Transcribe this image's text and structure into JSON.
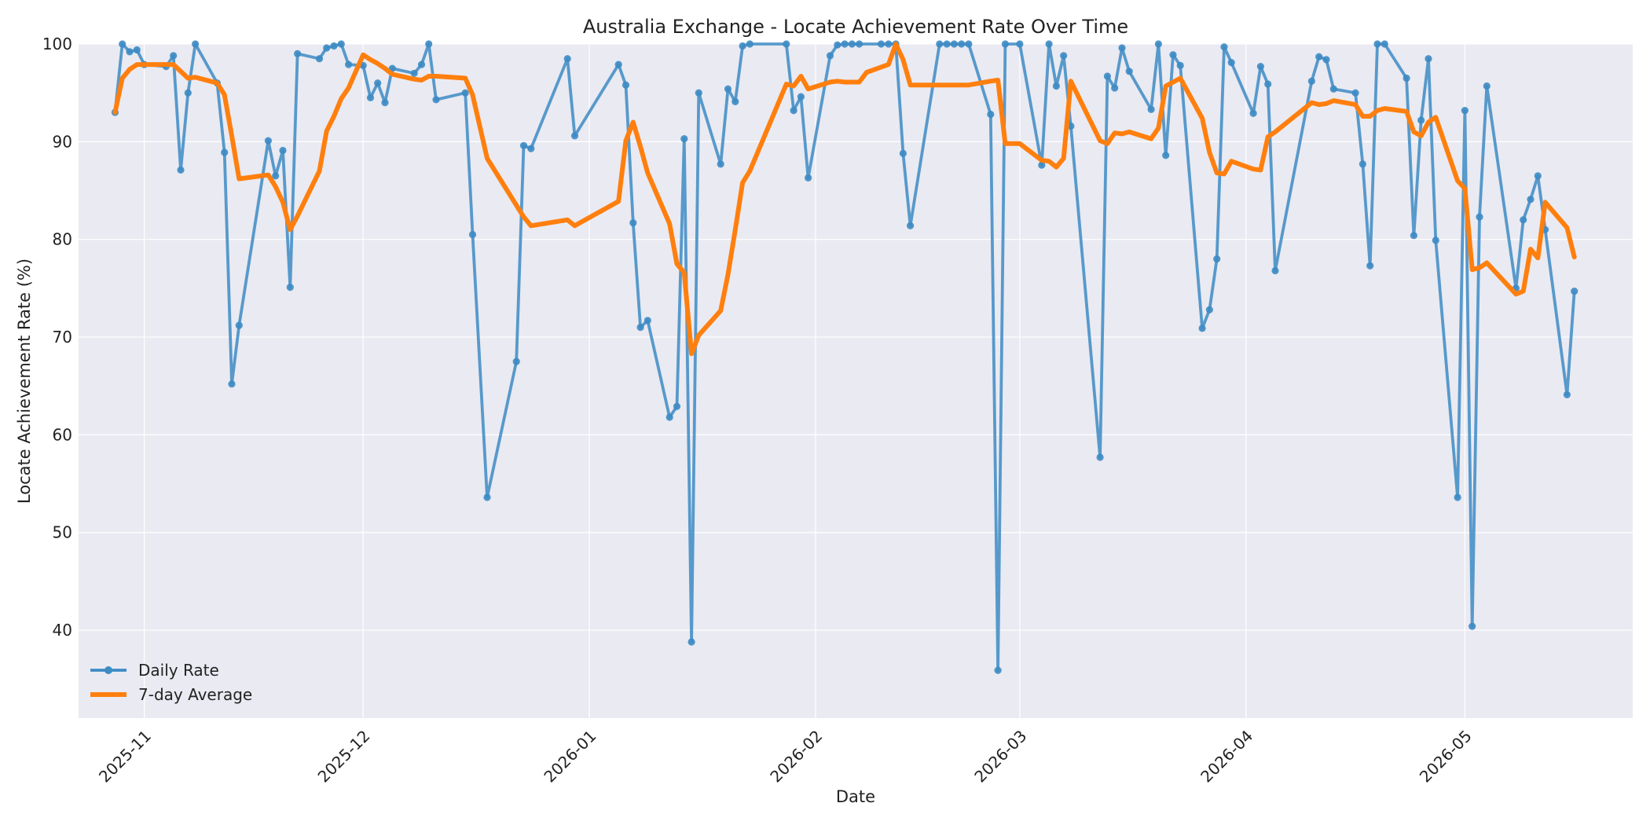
{
  "chart_data": {
    "type": "line",
    "title": "Australia Exchange - Locate Achievement Rate Over Time",
    "xlabel": "Date",
    "ylabel": "Locate Achievement Rate (%)",
    "xlim": [
      "2025-10-23",
      "2026-05-24"
    ],
    "ylim": [
      31,
      100
    ],
    "grid": true,
    "legend_position": "lower-left",
    "x_ticks": [
      "2025-11",
      "2025-12",
      "2026-01",
      "2026-02",
      "2026-03",
      "2026-04",
      "2026-05"
    ],
    "y_ticks": [
      40,
      50,
      60,
      70,
      80,
      90,
      100
    ],
    "colors": {
      "plot_background": "#eaeaf2",
      "grid": "#ffffff",
      "daily_rate": "#3d8bc4",
      "seven_day_average": "#ff7f0e"
    },
    "series": [
      {
        "name": "Daily Rate",
        "marker": "circle",
        "points": [
          [
            "2025-10-28",
            93.0
          ],
          [
            "2025-10-29",
            100.0
          ],
          [
            "2025-10-30",
            99.2
          ],
          [
            "2025-10-31",
            99.4
          ],
          [
            "2025-11-01",
            97.9
          ],
          [
            "2025-11-04",
            97.7
          ],
          [
            "2025-11-05",
            98.8
          ],
          [
            "2025-11-06",
            87.1
          ],
          [
            "2025-11-07",
            95.0
          ],
          [
            "2025-11-08",
            100.0
          ],
          [
            "2025-11-11",
            96.0
          ],
          [
            "2025-11-12",
            88.9
          ],
          [
            "2025-11-13",
            65.2
          ],
          [
            "2025-11-14",
            71.2
          ],
          [
            "2025-11-18",
            90.1
          ],
          [
            "2025-11-19",
            86.5
          ],
          [
            "2025-11-20",
            89.1
          ],
          [
            "2025-11-21",
            75.1
          ],
          [
            "2025-11-22",
            99.0
          ],
          [
            "2025-11-25",
            98.5
          ],
          [
            "2025-11-26",
            99.6
          ],
          [
            "2025-11-27",
            99.8
          ],
          [
            "2025-11-28",
            100.0
          ],
          [
            "2025-11-29",
            97.9
          ],
          [
            "2025-12-01",
            97.8
          ],
          [
            "2025-12-02",
            94.5
          ],
          [
            "2025-12-03",
            96.0
          ],
          [
            "2025-12-04",
            94.0
          ],
          [
            "2025-12-05",
            97.5
          ],
          [
            "2025-12-08",
            97.0
          ],
          [
            "2025-12-09",
            97.9
          ],
          [
            "2025-12-10",
            100.0
          ],
          [
            "2025-12-11",
            94.3
          ],
          [
            "2025-12-15",
            95.0
          ],
          [
            "2025-12-16",
            80.5
          ],
          [
            "2025-12-18",
            53.6
          ],
          [
            "2025-12-22",
            67.5
          ],
          [
            "2025-12-23",
            89.6
          ],
          [
            "2025-12-24",
            89.3
          ],
          [
            "2025-12-29",
            98.5
          ],
          [
            "2025-12-30",
            90.6
          ],
          [
            "2026-01-05",
            97.9
          ],
          [
            "2026-01-06",
            95.8
          ],
          [
            "2026-01-07",
            81.7
          ],
          [
            "2026-01-08",
            71.0
          ],
          [
            "2026-01-09",
            71.7
          ],
          [
            "2026-01-12",
            61.8
          ],
          [
            "2026-01-13",
            62.9
          ],
          [
            "2026-01-14",
            90.3
          ],
          [
            "2026-01-15",
            38.8
          ],
          [
            "2026-01-16",
            95.0
          ],
          [
            "2026-01-19",
            87.7
          ],
          [
            "2026-01-20",
            95.4
          ],
          [
            "2026-01-21",
            94.1
          ],
          [
            "2026-01-22",
            99.8
          ],
          [
            "2026-01-23",
            100.0
          ],
          [
            "2026-01-28",
            100.0
          ],
          [
            "2026-01-29",
            93.2
          ],
          [
            "2026-01-30",
            94.6
          ],
          [
            "2026-01-31",
            86.3
          ],
          [
            "2026-02-03",
            98.8
          ],
          [
            "2026-02-04",
            99.9
          ],
          [
            "2026-02-05",
            100.0
          ],
          [
            "2026-02-06",
            100.0
          ],
          [
            "2026-02-07",
            100.0
          ],
          [
            "2026-02-10",
            100.0
          ],
          [
            "2026-02-11",
            100.0
          ],
          [
            "2026-02-12",
            100.0
          ],
          [
            "2026-02-13",
            88.8
          ],
          [
            "2026-02-14",
            81.4
          ],
          [
            "2026-02-18",
            100.0
          ],
          [
            "2026-02-19",
            100.0
          ],
          [
            "2026-02-20",
            100.0
          ],
          [
            "2026-02-21",
            100.0
          ],
          [
            "2026-02-22",
            100.0
          ],
          [
            "2026-02-25",
            92.8
          ],
          [
            "2026-02-26",
            35.9
          ],
          [
            "2026-02-27",
            100.0
          ],
          [
            "2026-03-01",
            100.0
          ],
          [
            "2026-03-04",
            87.6
          ],
          [
            "2026-03-05",
            100.0
          ],
          [
            "2026-03-06",
            95.7
          ],
          [
            "2026-03-07",
            98.8
          ],
          [
            "2026-03-08",
            91.6
          ],
          [
            "2026-03-12",
            57.7
          ],
          [
            "2026-03-13",
            96.7
          ],
          [
            "2026-03-14",
            95.5
          ],
          [
            "2026-03-15",
            99.6
          ],
          [
            "2026-03-16",
            97.2
          ],
          [
            "2026-03-19",
            93.3
          ],
          [
            "2026-03-20",
            100.0
          ],
          [
            "2026-03-21",
            88.6
          ],
          [
            "2026-03-22",
            98.9
          ],
          [
            "2026-03-23",
            97.8
          ],
          [
            "2026-03-26",
            70.9
          ],
          [
            "2026-03-27",
            72.8
          ],
          [
            "2026-03-28",
            78.0
          ],
          [
            "2026-03-29",
            99.7
          ],
          [
            "2026-03-30",
            98.1
          ],
          [
            "2026-04-02",
            92.9
          ],
          [
            "2026-04-03",
            97.7
          ],
          [
            "2026-04-04",
            95.9
          ],
          [
            "2026-04-05",
            76.8
          ],
          [
            "2026-04-10",
            96.2
          ],
          [
            "2026-04-11",
            98.7
          ],
          [
            "2026-04-12",
            98.4
          ],
          [
            "2026-04-13",
            95.4
          ],
          [
            "2026-04-16",
            95.0
          ],
          [
            "2026-04-17",
            87.7
          ],
          [
            "2026-04-18",
            77.3
          ],
          [
            "2026-04-19",
            100.0
          ],
          [
            "2026-04-20",
            100.0
          ],
          [
            "2026-04-23",
            96.5
          ],
          [
            "2026-04-24",
            80.4
          ],
          [
            "2026-04-25",
            92.2
          ],
          [
            "2026-04-26",
            98.5
          ],
          [
            "2026-04-27",
            79.9
          ],
          [
            "2026-04-30",
            53.6
          ],
          [
            "2026-05-01",
            93.2
          ],
          [
            "2026-05-02",
            40.4
          ],
          [
            "2026-05-03",
            82.3
          ],
          [
            "2026-05-04",
            95.7
          ],
          [
            "2026-05-08",
            75.0
          ],
          [
            "2026-05-09",
            82.0
          ],
          [
            "2026-05-10",
            84.1
          ],
          [
            "2026-05-11",
            86.5
          ],
          [
            "2026-05-12",
            81.0
          ],
          [
            "2026-05-15",
            64.1
          ],
          [
            "2026-05-16",
            74.7
          ]
        ]
      },
      {
        "name": "7-day Average",
        "marker": "none",
        "points": [
          [
            "2025-10-28",
            93.0
          ],
          [
            "2025-10-29",
            96.5
          ],
          [
            "2025-10-30",
            97.4
          ],
          [
            "2025-10-31",
            97.9
          ],
          [
            "2025-11-01",
            97.9
          ],
          [
            "2025-11-04",
            97.9
          ],
          [
            "2025-11-05",
            97.9
          ],
          [
            "2025-11-06",
            97.2
          ],
          [
            "2025-11-07",
            96.5
          ],
          [
            "2025-11-08",
            96.6
          ],
          [
            "2025-11-11",
            96.0
          ],
          [
            "2025-11-12",
            94.8
          ],
          [
            "2025-11-13",
            90.6
          ],
          [
            "2025-11-14",
            86.2
          ],
          [
            "2025-11-18",
            86.6
          ],
          [
            "2025-11-19",
            85.4
          ],
          [
            "2025-11-20",
            83.8
          ],
          [
            "2025-11-21",
            81.0
          ],
          [
            "2025-11-22",
            82.4
          ],
          [
            "2025-11-25",
            87.0
          ],
          [
            "2025-11-26",
            91.1
          ],
          [
            "2025-11-27",
            92.6
          ],
          [
            "2025-11-28",
            94.4
          ],
          [
            "2025-11-29",
            95.5
          ],
          [
            "2025-12-01",
            98.9
          ],
          [
            "2025-12-02",
            98.4
          ],
          [
            "2025-12-03",
            98.0
          ],
          [
            "2025-12-04",
            97.5
          ],
          [
            "2025-12-05",
            96.9
          ],
          [
            "2025-12-08",
            96.4
          ],
          [
            "2025-12-09",
            96.3
          ],
          [
            "2025-12-10",
            96.7
          ],
          [
            "2025-12-11",
            96.7
          ],
          [
            "2025-12-15",
            96.5
          ],
          [
            "2025-12-16",
            94.8
          ],
          [
            "2025-12-18",
            88.3
          ],
          [
            "2025-12-22",
            83.5
          ],
          [
            "2025-12-23",
            82.3
          ],
          [
            "2025-12-24",
            81.4
          ],
          [
            "2025-12-29",
            82.0
          ],
          [
            "2025-12-30",
            81.4
          ],
          [
            "2026-01-05",
            83.9
          ],
          [
            "2026-01-06",
            90.1
          ],
          [
            "2026-01-07",
            92.0
          ],
          [
            "2026-01-08",
            89.5
          ],
          [
            "2026-01-09",
            86.8
          ],
          [
            "2026-01-12",
            81.6
          ],
          [
            "2026-01-13",
            77.5
          ],
          [
            "2026-01-14",
            76.6
          ],
          [
            "2026-01-15",
            68.3
          ],
          [
            "2026-01-16",
            70.2
          ],
          [
            "2026-01-19",
            72.7
          ],
          [
            "2026-01-20",
            76.4
          ],
          [
            "2026-01-21",
            81.0
          ],
          [
            "2026-01-22",
            85.8
          ],
          [
            "2026-01-23",
            87.0
          ],
          [
            "2026-01-28",
            95.9
          ],
          [
            "2026-01-29",
            95.7
          ],
          [
            "2026-01-30",
            96.7
          ],
          [
            "2026-01-31",
            95.4
          ],
          [
            "2026-02-03",
            96.1
          ],
          [
            "2026-02-04",
            96.2
          ],
          [
            "2026-02-05",
            96.1
          ],
          [
            "2026-02-06",
            96.1
          ],
          [
            "2026-02-07",
            96.1
          ],
          [
            "2026-02-08",
            97.1
          ],
          [
            "2026-02-11",
            97.9
          ],
          [
            "2026-02-12",
            100.0
          ],
          [
            "2026-02-13",
            98.4
          ],
          [
            "2026-02-14",
            95.8
          ],
          [
            "2026-02-18",
            95.8
          ],
          [
            "2026-02-19",
            95.8
          ],
          [
            "2026-02-20",
            95.8
          ],
          [
            "2026-02-21",
            95.8
          ],
          [
            "2026-02-22",
            95.8
          ],
          [
            "2026-02-25",
            96.2
          ],
          [
            "2026-02-26",
            96.3
          ],
          [
            "2026-02-27",
            89.8
          ],
          [
            "2026-03-01",
            89.8
          ],
          [
            "2026-03-04",
            88.1
          ],
          [
            "2026-03-05",
            88.0
          ],
          [
            "2026-03-06",
            87.4
          ],
          [
            "2026-03-07",
            88.3
          ],
          [
            "2026-03-08",
            96.2
          ],
          [
            "2026-03-12",
            90.1
          ],
          [
            "2026-03-13",
            89.8
          ],
          [
            "2026-03-14",
            90.9
          ],
          [
            "2026-03-15",
            90.8
          ],
          [
            "2026-03-16",
            91.0
          ],
          [
            "2026-03-19",
            90.3
          ],
          [
            "2026-03-20",
            91.4
          ],
          [
            "2026-03-21",
            95.7
          ],
          [
            "2026-03-22",
            96.1
          ],
          [
            "2026-03-23",
            96.5
          ],
          [
            "2026-03-26",
            92.4
          ],
          [
            "2026-03-27",
            88.9
          ],
          [
            "2026-03-28",
            86.8
          ],
          [
            "2026-03-29",
            86.7
          ],
          [
            "2026-03-30",
            88.0
          ],
          [
            "2026-04-02",
            87.2
          ],
          [
            "2026-04-03",
            87.1
          ],
          [
            "2026-04-04",
            90.5
          ],
          [
            "2026-04-05",
            91.0
          ],
          [
            "2026-04-10",
            94.0
          ],
          [
            "2026-04-11",
            93.8
          ],
          [
            "2026-04-12",
            93.9
          ],
          [
            "2026-04-13",
            94.2
          ],
          [
            "2026-04-16",
            93.8
          ],
          [
            "2026-04-17",
            92.6
          ],
          [
            "2026-04-18",
            92.6
          ],
          [
            "2026-04-19",
            93.2
          ],
          [
            "2026-04-20",
            93.4
          ],
          [
            "2026-04-23",
            93.1
          ],
          [
            "2026-04-24",
            91.0
          ],
          [
            "2026-04-25",
            90.6
          ],
          [
            "2026-04-26",
            92.0
          ],
          [
            "2026-04-27",
            92.5
          ],
          [
            "2026-04-30",
            86.0
          ],
          [
            "2026-05-01",
            85.2
          ],
          [
            "2026-05-02",
            76.9
          ],
          [
            "2026-05-03",
            77.1
          ],
          [
            "2026-05-04",
            77.6
          ],
          [
            "2026-05-08",
            74.4
          ],
          [
            "2026-05-09",
            74.7
          ],
          [
            "2026-05-10",
            79.0
          ],
          [
            "2026-05-11",
            78.1
          ],
          [
            "2026-05-12",
            83.8
          ],
          [
            "2026-05-15",
            81.2
          ],
          [
            "2026-05-16",
            78.2
          ]
        ]
      }
    ]
  }
}
